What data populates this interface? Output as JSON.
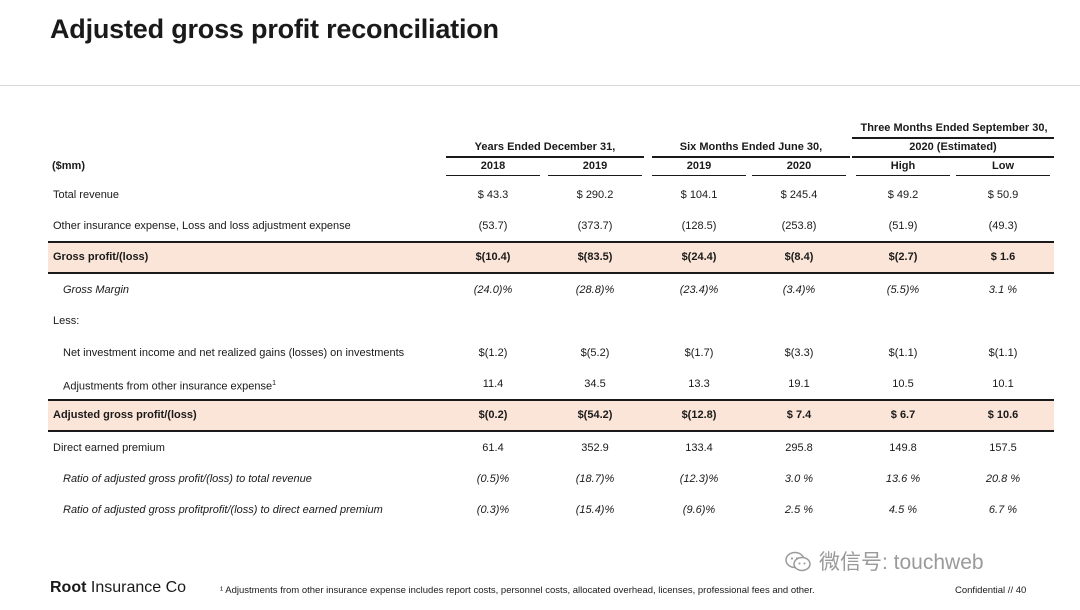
{
  "title": "Adjusted gross profit reconciliation",
  "unit_label": "($mm)",
  "groups": [
    {
      "label": "Years Ended December 31,",
      "columns": [
        "2018",
        "2019"
      ]
    },
    {
      "label": "Six Months Ended June 30,",
      "columns": [
        "2019",
        "2020"
      ]
    },
    {
      "label_line1": "Three Months Ended September 30,",
      "label_line2": "2020 (Estimated)",
      "columns": [
        "High",
        "Low"
      ]
    }
  ],
  "rows": [
    {
      "label": "Total revenue",
      "values": [
        "$ 43.3",
        "$ 290.2",
        "$ 104.1",
        "$ 245.4",
        "$ 49.2",
        "$ 50.9"
      ]
    },
    {
      "label": "Other insurance expense, Loss and loss adjustment expense",
      "values": [
        "(53.7)",
        "(373.7)",
        "(128.5)",
        "(253.8)",
        "(51.9)",
        "(49.3)"
      ]
    },
    {
      "label": "Gross profit/(loss)",
      "values": [
        "$(10.4)",
        "$(83.5)",
        "$(24.4)",
        "$(8.4)",
        "$(2.7)",
        "$ 1.6"
      ]
    },
    {
      "label": "Gross Margin",
      "values": [
        "(24.0)%",
        "(28.8)%",
        "(23.4)%",
        "(3.4)%",
        "(5.5)%",
        "3.1 %"
      ]
    },
    {
      "label": "Less:",
      "values": [
        "",
        "",
        "",
        "",
        "",
        ""
      ]
    },
    {
      "label": "Net investment income and net realized gains (losses) on investments",
      "values": [
        "$(1.2)",
        "$(5.2)",
        "$(1.7)",
        "$(3.3)",
        "$(1.1)",
        "$(1.1)"
      ]
    },
    {
      "label": "Adjustments from other insurance expense",
      "footnote_mark": "1",
      "values": [
        "11.4",
        "34.5",
        "13.3",
        "19.1",
        "10.5",
        "10.1"
      ]
    },
    {
      "label": "Adjusted gross profit/(loss)",
      "values": [
        "$(0.2)",
        "$(54.2)",
        "$(12.8)",
        "$ 7.4",
        "$ 6.7",
        "$ 10.6"
      ]
    },
    {
      "label": "Direct earned premium",
      "values": [
        "61.4",
        "352.9",
        "133.4",
        "295.8",
        "149.8",
        "157.5"
      ]
    },
    {
      "label": "Ratio of adjusted gross profit/(loss) to total revenue",
      "values": [
        "(0.5)%",
        "(18.7)%",
        "(12.3)%",
        "3.0 %",
        "13.6 %",
        "20.8 %"
      ]
    },
    {
      "label": "Ratio of adjusted gross profitprofit/(loss) to direct earned premium",
      "values": [
        "(0.3)%",
        "(15.4)%",
        "(9.6)%",
        "2.5 %",
        "4.5 %",
        "6.7 %"
      ]
    }
  ],
  "footer": {
    "logo_bold": "Root",
    "logo_rest": " Insurance Co",
    "footnote": "¹ Adjustments from other insurance expense includes report costs, personnel costs, allocated overhead, licenses, professional fees and other.",
    "confidential": "Confidential  //  40",
    "watermark": "微信号: touchweb"
  },
  "colors": {
    "highlight": "#fbe5d8",
    "rule": "#1a1a1a"
  }
}
